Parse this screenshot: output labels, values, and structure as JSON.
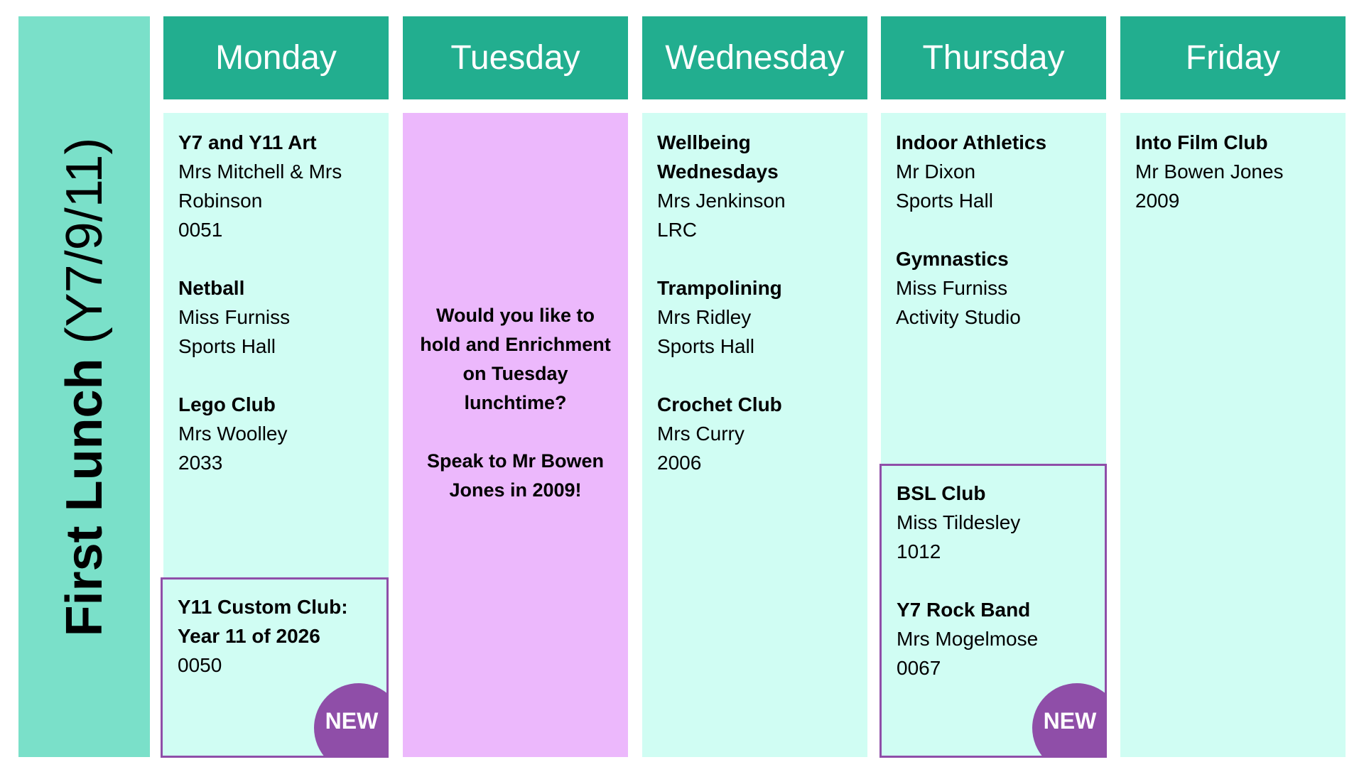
{
  "sidebar": {
    "title_bold": "First Lunch",
    "title_light": "(Y7/9/11)"
  },
  "colors": {
    "header": "#22ae8f",
    "sidebar": "#7ae0c9",
    "cell": "#d0fdf3",
    "highlight": "#ecb8fc",
    "new_accent": "#8f4ea8"
  },
  "days": [
    {
      "name": "Monday",
      "clubs": [
        {
          "title": "Y7 and Y11 Art",
          "lines": [
            "Mrs Mitchell & Mrs",
            "Robinson",
            "0051"
          ]
        },
        {
          "title": "Netball",
          "lines": [
            "Miss Furniss",
            "Sports Hall"
          ]
        },
        {
          "title": "Lego Club",
          "lines": [
            "Mrs Woolley",
            "2033"
          ]
        }
      ],
      "new_clubs": [
        {
          "title": "Y11 Custom Club:",
          "title2": "Year 11 of 2026",
          "lines": [
            "0050"
          ]
        }
      ],
      "badge": "NEW"
    },
    {
      "name": "Tuesday",
      "message": [
        "Would you like to hold and Enrichment on Tuesday lunchtime?",
        "Speak to Mr Bowen Jones in 2009!"
      ]
    },
    {
      "name": "Wednesday",
      "clubs": [
        {
          "title": "Wellbeing Wednesdays",
          "lines": [
            "Mrs Jenkinson",
            "LRC"
          ]
        },
        {
          "title": "Trampolining",
          "lines": [
            "Mrs Ridley",
            "Sports Hall"
          ]
        },
        {
          "title": "Crochet Club",
          "lines": [
            "Mrs Curry",
            "2006"
          ]
        }
      ]
    },
    {
      "name": "Thursday",
      "clubs": [
        {
          "title": "Indoor Athletics",
          "lines": [
            "Mr Dixon",
            "Sports Hall"
          ]
        },
        {
          "title": "Gymnastics",
          "lines": [
            "Miss Furniss",
            "Activity Studio"
          ]
        }
      ],
      "new_clubs": [
        {
          "title": "BSL Club",
          "lines": [
            "Miss Tildesley",
            "1012"
          ]
        },
        {
          "title": "Y7 Rock Band",
          "lines": [
            "Mrs Mogelmose",
            "0067"
          ]
        }
      ],
      "badge": "NEW"
    },
    {
      "name": "Friday",
      "clubs": [
        {
          "title": "Into Film Club",
          "lines": [
            "Mr Bowen Jones",
            "2009"
          ]
        }
      ]
    }
  ]
}
